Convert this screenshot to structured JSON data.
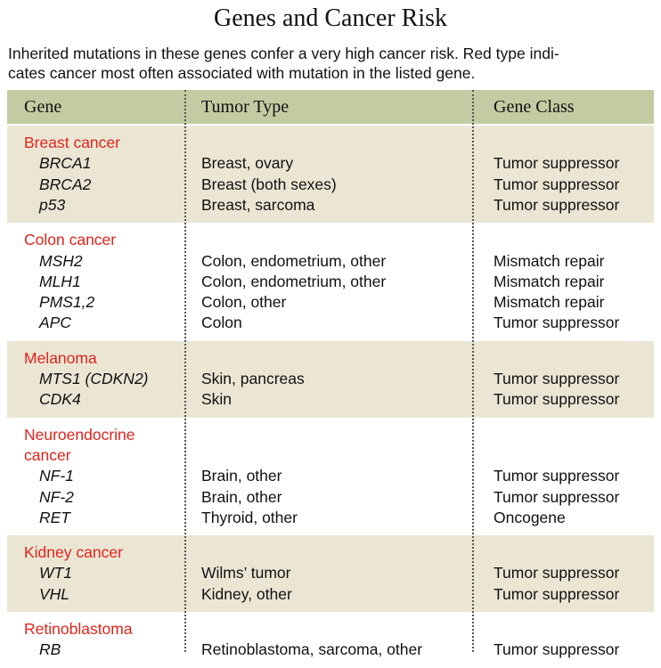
{
  "title": "Genes and Cancer Risk",
  "intro": [
    "Inherited mutations in these genes confer a very high cancer risk. Red type indi-",
    "cates cancer most often associated with mutation in the listed gene."
  ],
  "headers": {
    "gene": "Gene",
    "tumor_type": "Tumor Type",
    "gene_class": "Gene Class"
  },
  "colors": {
    "header_bg": "#c3cba2",
    "band_bg": "#ebe6d4",
    "group_text": "#e1241c"
  },
  "groups": [
    {
      "name": [
        "Breast cancer"
      ],
      "rows": [
        {
          "gene": "BRCA1",
          "tumor": "Breast, ovary",
          "class": "Tumor suppressor"
        },
        {
          "gene": "BRCA2",
          "tumor": "Breast (both sexes)",
          "class": "Tumor suppressor"
        },
        {
          "gene": "p53",
          "tumor": "Breast, sarcoma",
          "class": "Tumor suppressor"
        }
      ]
    },
    {
      "name": [
        "Colon cancer"
      ],
      "rows": [
        {
          "gene": "MSH2",
          "tumor": "Colon, endometrium, other",
          "class": "Mismatch repair"
        },
        {
          "gene": "MLH1",
          "tumor": "Colon, endometrium, other",
          "class": "Mismatch repair"
        },
        {
          "gene": "PMS1,2",
          "tumor": "Colon, other",
          "class": "Mismatch repair"
        },
        {
          "gene": "APC",
          "tumor": "Colon",
          "class": "Tumor suppressor"
        }
      ]
    },
    {
      "name": [
        "Melanoma"
      ],
      "rows": [
        {
          "gene": "MTS1 (CDKN2)",
          "tumor": "Skin, pancreas",
          "class": "Tumor suppressor"
        },
        {
          "gene": "CDK4",
          "tumor": "Skin",
          "class": "Tumor suppressor"
        }
      ]
    },
    {
      "name": [
        "Neuroendocrine",
        "cancer"
      ],
      "rows": [
        {
          "gene": "NF-1",
          "tumor": "Brain, other",
          "class": "Tumor suppressor"
        },
        {
          "gene": "NF-2",
          "tumor": "Brain, other",
          "class": "Tumor suppressor"
        },
        {
          "gene": "RET",
          "tumor": "Thyroid, other",
          "class": "Oncogene"
        }
      ]
    },
    {
      "name": [
        "Kidney cancer"
      ],
      "rows": [
        {
          "gene": "WT1",
          "tumor": "Wilms’ tumor",
          "class": "Tumor suppressor"
        },
        {
          "gene": "VHL",
          "tumor": "Kidney, other",
          "class": "Tumor suppressor"
        }
      ]
    },
    {
      "name": [
        "Retinoblastoma"
      ],
      "rows": [
        {
          "gene": "RB",
          "tumor": "Retinoblastoma, sarcoma, other",
          "class": "Tumor suppressor"
        }
      ]
    }
  ]
}
